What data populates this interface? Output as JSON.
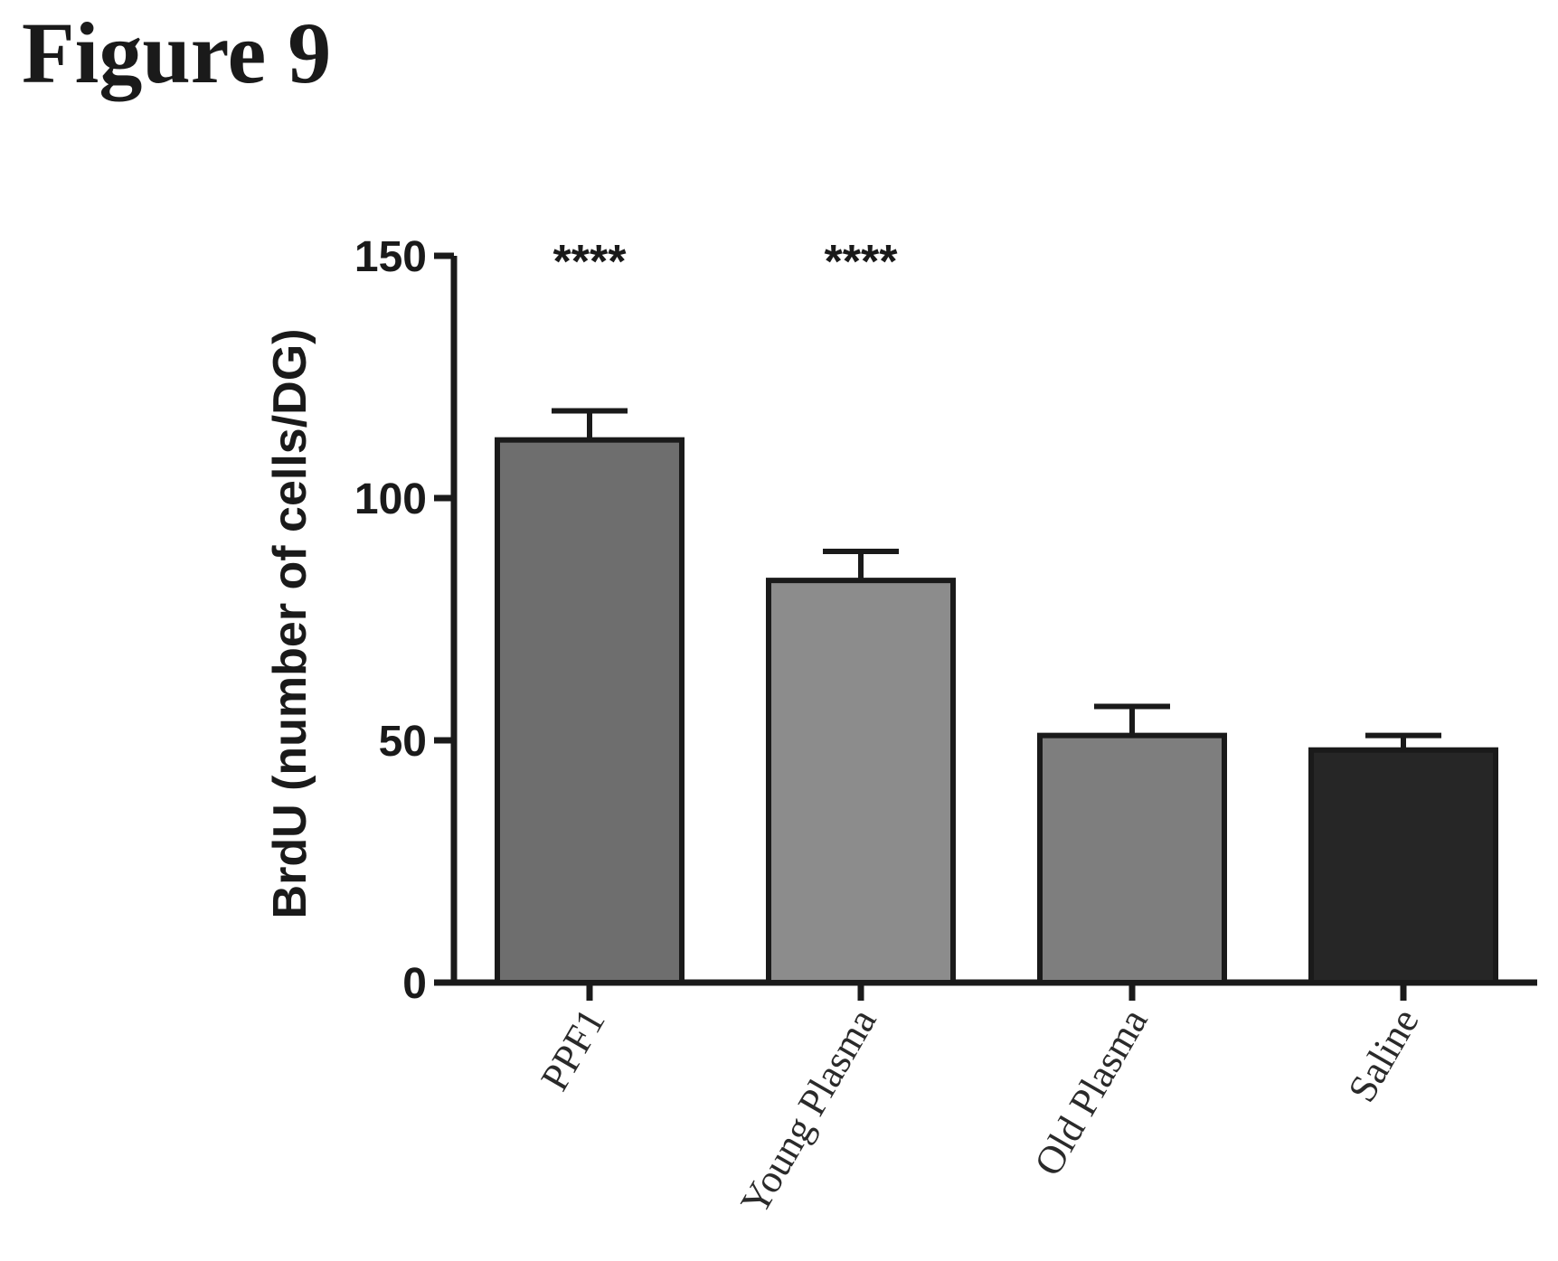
{
  "figure": {
    "title": "Figure 9"
  },
  "chart_data": {
    "type": "bar",
    "title": "",
    "xlabel": "",
    "ylabel": "BrdU (number of cells/DG)",
    "ylim": [
      0,
      150
    ],
    "yticks": [
      0,
      50,
      100,
      150
    ],
    "categories": [
      "PPF1",
      "Young Plasma",
      "Old Plasma",
      "Saline"
    ],
    "values": [
      112,
      83,
      51,
      48
    ],
    "errors": [
      6,
      6,
      6,
      3
    ],
    "colors": [
      "#6e6e6e",
      "#8c8c8c",
      "#7e7e7e",
      "#262626"
    ],
    "significance": [
      "****",
      "****",
      "",
      ""
    ],
    "grid": false,
    "legend": "none"
  }
}
